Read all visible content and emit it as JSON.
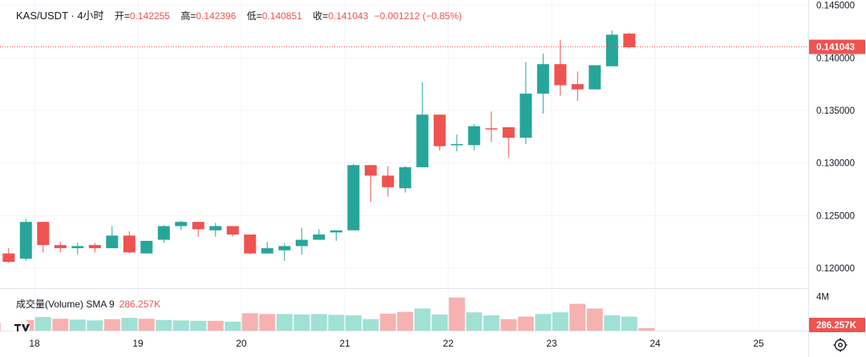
{
  "header": {
    "symbol": "KAS/USDT · 4小时",
    "open_label": "开=",
    "open_value": "0.142255",
    "high_label": "高=",
    "high_value": "0.142396",
    "low_label": "低=",
    "low_value": "0.140851",
    "close_label": "收=",
    "close_value": "0.141043",
    "change": "−0.001212 (−0.85%)"
  },
  "volume_legend": {
    "label": "成交量(Volume) SMA 9",
    "value": "286.257K"
  },
  "colors": {
    "up": "#26a69a",
    "down": "#ef5350",
    "up_vol": "#9fe1d3",
    "down_vol": "#f6b2b0",
    "grid": "#f0f3fa",
    "text": "#131722"
  },
  "icons": {
    "logo": "tradingview-logo-icon",
    "settings": "gear-icon"
  },
  "chart_data": {
    "type": "candlestick",
    "price_axis": {
      "ticks": [
        0.145,
        0.14,
        0.135,
        0.13,
        0.125,
        0.12
      ],
      "tick_labels": [
        "0.145000",
        "0.140000",
        "0.135000",
        "0.130000",
        "0.125000",
        "0.120000"
      ],
      "range": [
        0.1181,
        0.1455
      ]
    },
    "last_price": {
      "value": 0.141043,
      "label": "0.141043"
    },
    "time_axis": {
      "labels": [
        "18",
        "19",
        "20",
        "21",
        "22",
        "23",
        "24",
        "25"
      ],
      "label_index": [
        1.5,
        7.5,
        13.5,
        19.5,
        25.5,
        31.5,
        37.5,
        43.5
      ]
    },
    "volume_axis": {
      "tick_labels": [
        "4M"
      ],
      "tick_value": 4000000,
      "max": 5000000,
      "last_label": "286.257K"
    },
    "candles": [
      {
        "o": 0.1214,
        "h": 0.1219,
        "l": 0.1205,
        "c": 0.1206
      },
      {
        "o": 0.1209,
        "h": 0.1247,
        "l": 0.1207,
        "c": 0.1244
      },
      {
        "o": 0.1244,
        "h": 0.1244,
        "l": 0.1215,
        "c": 0.1222
      },
      {
        "o": 0.1222,
        "h": 0.1225,
        "l": 0.1215,
        "c": 0.1219
      },
      {
        "o": 0.1219,
        "h": 0.1224,
        "l": 0.1213,
        "c": 0.1221
      },
      {
        "o": 0.1222,
        "h": 0.1224,
        "l": 0.1215,
        "c": 0.1219
      },
      {
        "o": 0.1219,
        "h": 0.124,
        "l": 0.1219,
        "c": 0.1231
      },
      {
        "o": 0.1231,
        "h": 0.1235,
        "l": 0.1214,
        "c": 0.1215
      },
      {
        "o": 0.1214,
        "h": 0.1226,
        "l": 0.1214,
        "c": 0.1226
      },
      {
        "o": 0.1227,
        "h": 0.1241,
        "l": 0.1224,
        "c": 0.124
      },
      {
        "o": 0.124,
        "h": 0.1245,
        "l": 0.1236,
        "c": 0.1244
      },
      {
        "o": 0.1244,
        "h": 0.1244,
        "l": 0.123,
        "c": 0.1237
      },
      {
        "o": 0.1236,
        "h": 0.1243,
        "l": 0.123,
        "c": 0.124
      },
      {
        "o": 0.124,
        "h": 0.124,
        "l": 0.123,
        "c": 0.1232
      },
      {
        "o": 0.1232,
        "h": 0.1232,
        "l": 0.1213,
        "c": 0.1214
      },
      {
        "o": 0.1214,
        "h": 0.1225,
        "l": 0.1214,
        "c": 0.1219
      },
      {
        "o": 0.1217,
        "h": 0.1224,
        "l": 0.1207,
        "c": 0.1221
      },
      {
        "o": 0.1221,
        "h": 0.1238,
        "l": 0.1213,
        "c": 0.1227
      },
      {
        "o": 0.1227,
        "h": 0.1237,
        "l": 0.1227,
        "c": 0.1232
      },
      {
        "o": 0.1234,
        "h": 0.1234,
        "l": 0.1226,
        "c": 0.1236
      },
      {
        "o": 0.1236,
        "h": 0.1299,
        "l": 0.1236,
        "c": 0.1298
      },
      {
        "o": 0.1298,
        "h": 0.1298,
        "l": 0.1263,
        "c": 0.1288
      },
      {
        "o": 0.1288,
        "h": 0.1297,
        "l": 0.1268,
        "c": 0.1277
      },
      {
        "o": 0.1276,
        "h": 0.1297,
        "l": 0.1272,
        "c": 0.1296
      },
      {
        "o": 0.1296,
        "h": 0.1377,
        "l": 0.1296,
        "c": 0.1346
      },
      {
        "o": 0.1346,
        "h": 0.1346,
        "l": 0.1312,
        "c": 0.1316
      },
      {
        "o": 0.1317,
        "h": 0.1327,
        "l": 0.1311,
        "c": 0.1318
      },
      {
        "o": 0.1317,
        "h": 0.1337,
        "l": 0.1312,
        "c": 0.1335
      },
      {
        "o": 0.1333,
        "h": 0.1349,
        "l": 0.132,
        "c": 0.1332
      },
      {
        "o": 0.1334,
        "h": 0.1334,
        "l": 0.1305,
        "c": 0.1324
      },
      {
        "o": 0.1324,
        "h": 0.1396,
        "l": 0.1318,
        "c": 0.1366
      },
      {
        "o": 0.1366,
        "h": 0.1404,
        "l": 0.1347,
        "c": 0.1394
      },
      {
        "o": 0.1394,
        "h": 0.1417,
        "l": 0.1364,
        "c": 0.1374
      },
      {
        "o": 0.1375,
        "h": 0.1387,
        "l": 0.1359,
        "c": 0.137
      },
      {
        "o": 0.137,
        "h": 0.1393,
        "l": 0.137,
        "c": 0.1393
      },
      {
        "o": 0.1392,
        "h": 0.1426,
        "l": 0.1392,
        "c": 0.1422
      },
      {
        "o": 0.1423,
        "h": 0.1424,
        "l": 0.1409,
        "c": 0.141
      }
    ],
    "volumes": [
      1250000,
      1600000,
      1400000,
      1300000,
      1200000,
      1350000,
      1500000,
      1400000,
      1250000,
      1200000,
      1150000,
      1150000,
      1050000,
      2050000,
      1950000,
      1950000,
      1900000,
      1950000,
      1850000,
      1800000,
      1350000,
      2000000,
      2200000,
      2600000,
      1900000,
      3900000,
      2150000,
      1800000,
      1350000,
      1650000,
      1950000,
      2150000,
      3150000,
      2600000,
      1800000,
      1650000,
      300000
    ],
    "volume_up": [
      false,
      true,
      false,
      true,
      true,
      false,
      true,
      false,
      true,
      true,
      true,
      false,
      true,
      false,
      false,
      true,
      true,
      true,
      true,
      true,
      true,
      false,
      false,
      true,
      true,
      false,
      true,
      true,
      false,
      false,
      true,
      true,
      false,
      false,
      true,
      true,
      false
    ]
  }
}
